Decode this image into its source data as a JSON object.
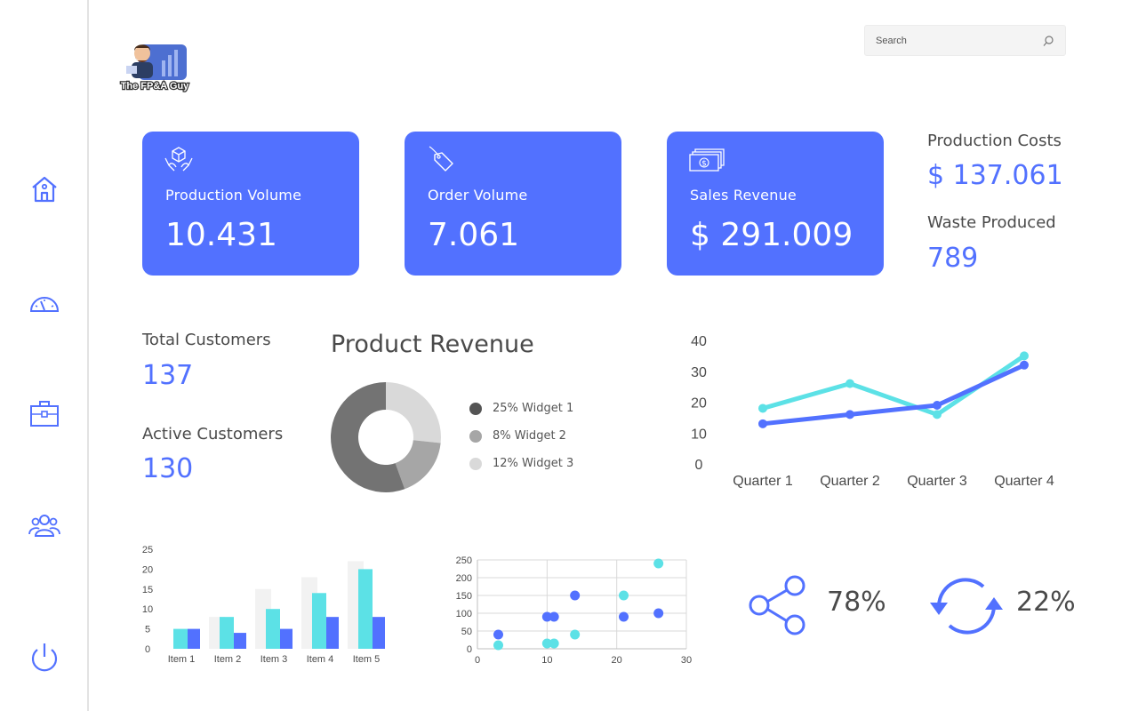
{
  "search": {
    "placeholder": "Search"
  },
  "logo": {
    "text": "The FP&A Guy"
  },
  "sidebar": {
    "items": [
      {
        "name": "home"
      },
      {
        "name": "dashboard"
      },
      {
        "name": "briefcase"
      },
      {
        "name": "users"
      },
      {
        "name": "power"
      }
    ]
  },
  "cards": [
    {
      "label": "Production Volume",
      "value": "10.431",
      "icon": "boxes-hands-icon"
    },
    {
      "label": "Order Volume",
      "value": "7.061",
      "icon": "tag-icon"
    },
    {
      "label": "Sales Revenue",
      "value": "$ 291.009",
      "icon": "cash-icon"
    }
  ],
  "stats": {
    "production_costs": {
      "label": "Production Costs",
      "value": "$ 137.061"
    },
    "waste_produced": {
      "label": "Waste Produced",
      "value": "789"
    },
    "total_customers": {
      "label": "Total Customers",
      "value": "137"
    },
    "active_customers": {
      "label": "Active Customers",
      "value": "130"
    }
  },
  "product_revenue": {
    "title": "Product Revenue",
    "legend": [
      {
        "label": "25% Widget 1",
        "color": "#545454"
      },
      {
        "label": "8% Widget 2",
        "color": "#a6a6a6"
      },
      {
        "label": "12% Widget 3",
        "color": "#d9d9d9"
      }
    ]
  },
  "kpis": [
    {
      "value": "78%",
      "icon": "share-icon"
    },
    {
      "value": "22%",
      "icon": "refresh-icon"
    }
  ],
  "colors": {
    "accent": "#5271ff",
    "teal": "#5ce1e6",
    "text": "#4a4a4a"
  },
  "chart_data": [
    {
      "type": "pie",
      "variant": "donut",
      "title": "Product Revenue",
      "labels": [
        "Widget 1",
        "Widget 2",
        "Widget 3"
      ],
      "values": [
        25,
        8,
        12
      ],
      "colors": [
        "#737373",
        "#a6a6a6",
        "#d9d9d9"
      ]
    },
    {
      "type": "line",
      "categories": [
        "Quarter 1",
        "Quarter 2",
        "Quarter 3",
        "Quarter 4"
      ],
      "series": [
        {
          "values": [
            18,
            26,
            16,
            35
          ],
          "color": "#5ce1e6"
        },
        {
          "values": [
            13,
            16,
            19,
            32
          ],
          "color": "#5271ff"
        }
      ],
      "ylim": [
        0,
        40
      ],
      "yticks": [
        0,
        10,
        20,
        30,
        40
      ],
      "grid": false
    },
    {
      "type": "bar",
      "categories": [
        "Item 1",
        "Item 2",
        "Item 3",
        "Item 4",
        "Item 5"
      ],
      "series": [
        {
          "values": [
            0,
            8,
            15,
            18,
            22
          ],
          "color": "#f2f2f2"
        },
        {
          "values": [
            5,
            8,
            10,
            14,
            20
          ],
          "color": "#5ce1e6"
        },
        {
          "values": [
            5,
            4,
            5,
            8,
            8
          ],
          "color": "#5271ff"
        }
      ],
      "ylim": [
        0,
        25
      ],
      "yticks": [
        0,
        5,
        10,
        15,
        20,
        25
      ]
    },
    {
      "type": "scatter",
      "series": [
        {
          "points": [
            [
              3,
              40
            ],
            [
              10,
              90
            ],
            [
              11,
              90
            ],
            [
              14,
              150
            ],
            [
              21,
              90
            ],
            [
              26,
              100
            ]
          ],
          "color": "#5271ff"
        },
        {
          "points": [
            [
              3,
              10
            ],
            [
              10,
              15
            ],
            [
              11,
              15
            ],
            [
              14,
              40
            ],
            [
              21,
              150
            ],
            [
              26,
              240
            ]
          ],
          "color": "#5ce1e6"
        }
      ],
      "xlim": [
        0,
        30
      ],
      "ylim": [
        0,
        250
      ],
      "xticks": [
        0,
        10,
        20,
        30
      ],
      "yticks": [
        0,
        50,
        100,
        150,
        200,
        250
      ],
      "grid": true
    }
  ]
}
